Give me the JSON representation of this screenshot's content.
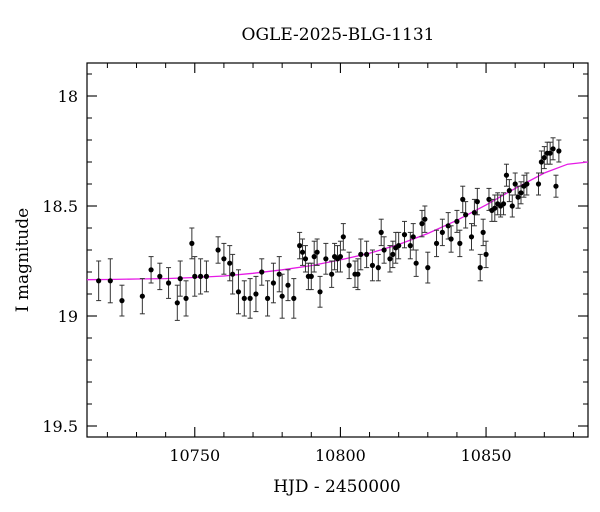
{
  "chart_data": {
    "type": "scatter",
    "title": "OGLE-2025-BLG-1131",
    "xlabel": "HJD - 2450000",
    "ylabel": "I magnitude",
    "xlim": [
      10713,
      10885
    ],
    "ylim": [
      19.55,
      17.85
    ],
    "y_inverted": true,
    "x_ticks": [
      10750,
      10800,
      10850
    ],
    "y_ticks": [
      18,
      18.5,
      19,
      19.5
    ],
    "x_tick_labels": [
      "10750",
      "10800",
      "10850"
    ],
    "y_tick_labels": [
      "18",
      "18.5",
      "19",
      "19.5"
    ],
    "grid": false,
    "legend": false,
    "colors": {
      "points": "#000000",
      "model": "#e619e6"
    },
    "series": [
      {
        "kind": "points_with_errorbars",
        "x": [
          10717,
          10721,
          10725,
          10732,
          10735,
          10738,
          10741,
          10744,
          10745,
          10747,
          10749,
          10750,
          10752,
          10754,
          10758,
          10760,
          10762,
          10763,
          10765,
          10767,
          10769,
          10771,
          10773,
          10775,
          10777,
          10779,
          10780,
          10782,
          10784,
          10786,
          10787,
          10788,
          10789,
          10790,
          10791,
          10792,
          10793,
          10795,
          10797,
          10798,
          10799,
          10800,
          10801,
          10803,
          10805,
          10806,
          10807,
          10809,
          10811,
          10813,
          10814,
          10815,
          10817,
          10818,
          10819,
          10820,
          10822,
          10824,
          10825,
          10826,
          10828,
          10829,
          10830,
          10833,
          10835,
          10837,
          10838,
          10840,
          10841,
          10842,
          10843,
          10845,
          10846,
          10847,
          10848,
          10849,
          10850,
          10851,
          10852,
          10853,
          10854,
          10855,
          10856,
          10857,
          10858,
          10859,
          10860,
          10861,
          10862,
          10863,
          10864,
          10868,
          10869,
          10870,
          10871,
          10872,
          10873,
          10874,
          10875
        ],
        "y": [
          18.84,
          18.84,
          18.93,
          18.91,
          18.79,
          18.82,
          18.85,
          18.94,
          18.83,
          18.92,
          18.67,
          18.82,
          18.82,
          18.82,
          18.7,
          18.74,
          18.76,
          18.81,
          18.89,
          18.92,
          18.92,
          18.9,
          18.8,
          18.92,
          18.85,
          18.81,
          18.91,
          18.86,
          18.92,
          18.68,
          18.71,
          18.74,
          18.82,
          18.82,
          18.73,
          18.71,
          18.89,
          18.74,
          18.81,
          18.73,
          18.74,
          18.73,
          18.64,
          18.77,
          18.81,
          18.81,
          18.72,
          18.72,
          18.77,
          18.78,
          18.62,
          18.7,
          18.74,
          18.72,
          18.69,
          18.68,
          18.63,
          18.68,
          18.64,
          18.76,
          18.58,
          18.56,
          18.78,
          18.67,
          18.62,
          18.59,
          18.65,
          18.57,
          18.67,
          18.47,
          18.54,
          18.64,
          18.53,
          18.48,
          18.78,
          18.62,
          18.72,
          18.47,
          18.52,
          18.51,
          18.49,
          18.5,
          18.49,
          18.36,
          18.43,
          18.5,
          18.4,
          18.46,
          18.44,
          18.41,
          18.4,
          18.4,
          18.3,
          18.28,
          18.26,
          18.26,
          18.24,
          18.41,
          18.25
        ],
        "err": [
          0.09,
          0.1,
          0.07,
          0.08,
          0.06,
          0.06,
          0.07,
          0.08,
          0.08,
          0.08,
          0.07,
          0.09,
          0.08,
          0.07,
          0.06,
          0.07,
          0.08,
          0.09,
          0.1,
          0.08,
          0.09,
          0.08,
          0.06,
          0.08,
          0.09,
          0.08,
          0.1,
          0.07,
          0.09,
          0.06,
          0.06,
          0.06,
          0.06,
          0.06,
          0.07,
          0.06,
          0.07,
          0.07,
          0.06,
          0.06,
          0.06,
          0.07,
          0.06,
          0.06,
          0.06,
          0.07,
          0.07,
          0.06,
          0.07,
          0.06,
          0.06,
          0.06,
          0.06,
          0.06,
          0.07,
          0.06,
          0.06,
          0.06,
          0.06,
          0.06,
          0.06,
          0.06,
          0.07,
          0.06,
          0.06,
          0.06,
          0.06,
          0.05,
          0.06,
          0.06,
          0.06,
          0.06,
          0.06,
          0.06,
          0.06,
          0.06,
          0.06,
          0.05,
          0.05,
          0.06,
          0.05,
          0.05,
          0.05,
          0.05,
          0.05,
          0.05,
          0.05,
          0.05,
          0.05,
          0.05,
          0.05,
          0.05,
          0.05,
          0.05,
          0.05,
          0.05,
          0.05,
          0.05,
          0.05
        ]
      },
      {
        "kind": "model_curve",
        "x": [
          10713,
          10720,
          10730,
          10740,
          10750,
          10760,
          10770,
          10780,
          10790,
          10800,
          10810,
          10820,
          10830,
          10840,
          10850,
          10860,
          10870,
          10878,
          10885
        ],
        "y": [
          18.835,
          18.834,
          18.832,
          18.83,
          18.825,
          18.818,
          18.806,
          18.79,
          18.771,
          18.745,
          18.715,
          18.675,
          18.625,
          18.565,
          18.495,
          18.42,
          18.35,
          18.31,
          18.3
        ]
      }
    ]
  }
}
